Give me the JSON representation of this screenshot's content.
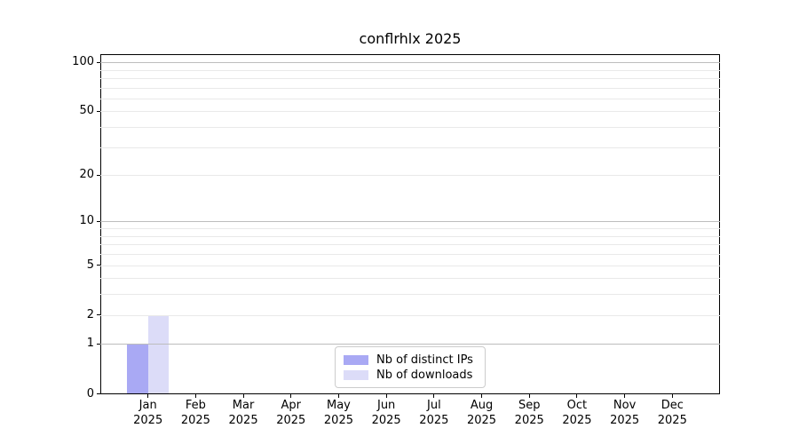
{
  "chart_data": {
    "type": "bar",
    "title": "conflrhlx 2025",
    "categories": [
      "Jan",
      "Feb",
      "Mar",
      "Apr",
      "May",
      "Jun",
      "Jul",
      "Aug",
      "Sep",
      "Oct",
      "Nov",
      "Dec"
    ],
    "year_label": "2025",
    "series": [
      {
        "name": "Nb of distinct IPs",
        "color": "#a9a9f4",
        "values": [
          1,
          0,
          0,
          0,
          0,
          0,
          0,
          0,
          0,
          0,
          0,
          0
        ]
      },
      {
        "name": "Nb of downloads",
        "color": "#dcdcf8",
        "values": [
          2,
          0,
          0,
          0,
          0,
          0,
          0,
          0,
          0,
          0,
          0,
          0
        ]
      }
    ],
    "yscale": "log1p",
    "ylim": [
      0,
      112
    ],
    "ytick_values": [
      0,
      1,
      2,
      5,
      10,
      20,
      50,
      100
    ],
    "ytick_labels": [
      "0",
      "1",
      "2",
      "5",
      "10",
      "20",
      "50",
      "100"
    ],
    "decade_gridlines": [
      1,
      10,
      100
    ],
    "minor_gridlines": [
      3,
      4,
      6,
      7,
      8,
      9,
      30,
      40,
      60,
      70,
      80,
      90
    ],
    "light_major_gridlines": [
      2,
      5,
      20,
      50
    ],
    "grid": "horizontal",
    "legend_position": "lower center",
    "colors": {
      "grid_major": "#bdbdbd",
      "grid_minor": "#e9e9e9",
      "spine": "#000000",
      "legend_border": "#cccccc"
    }
  }
}
